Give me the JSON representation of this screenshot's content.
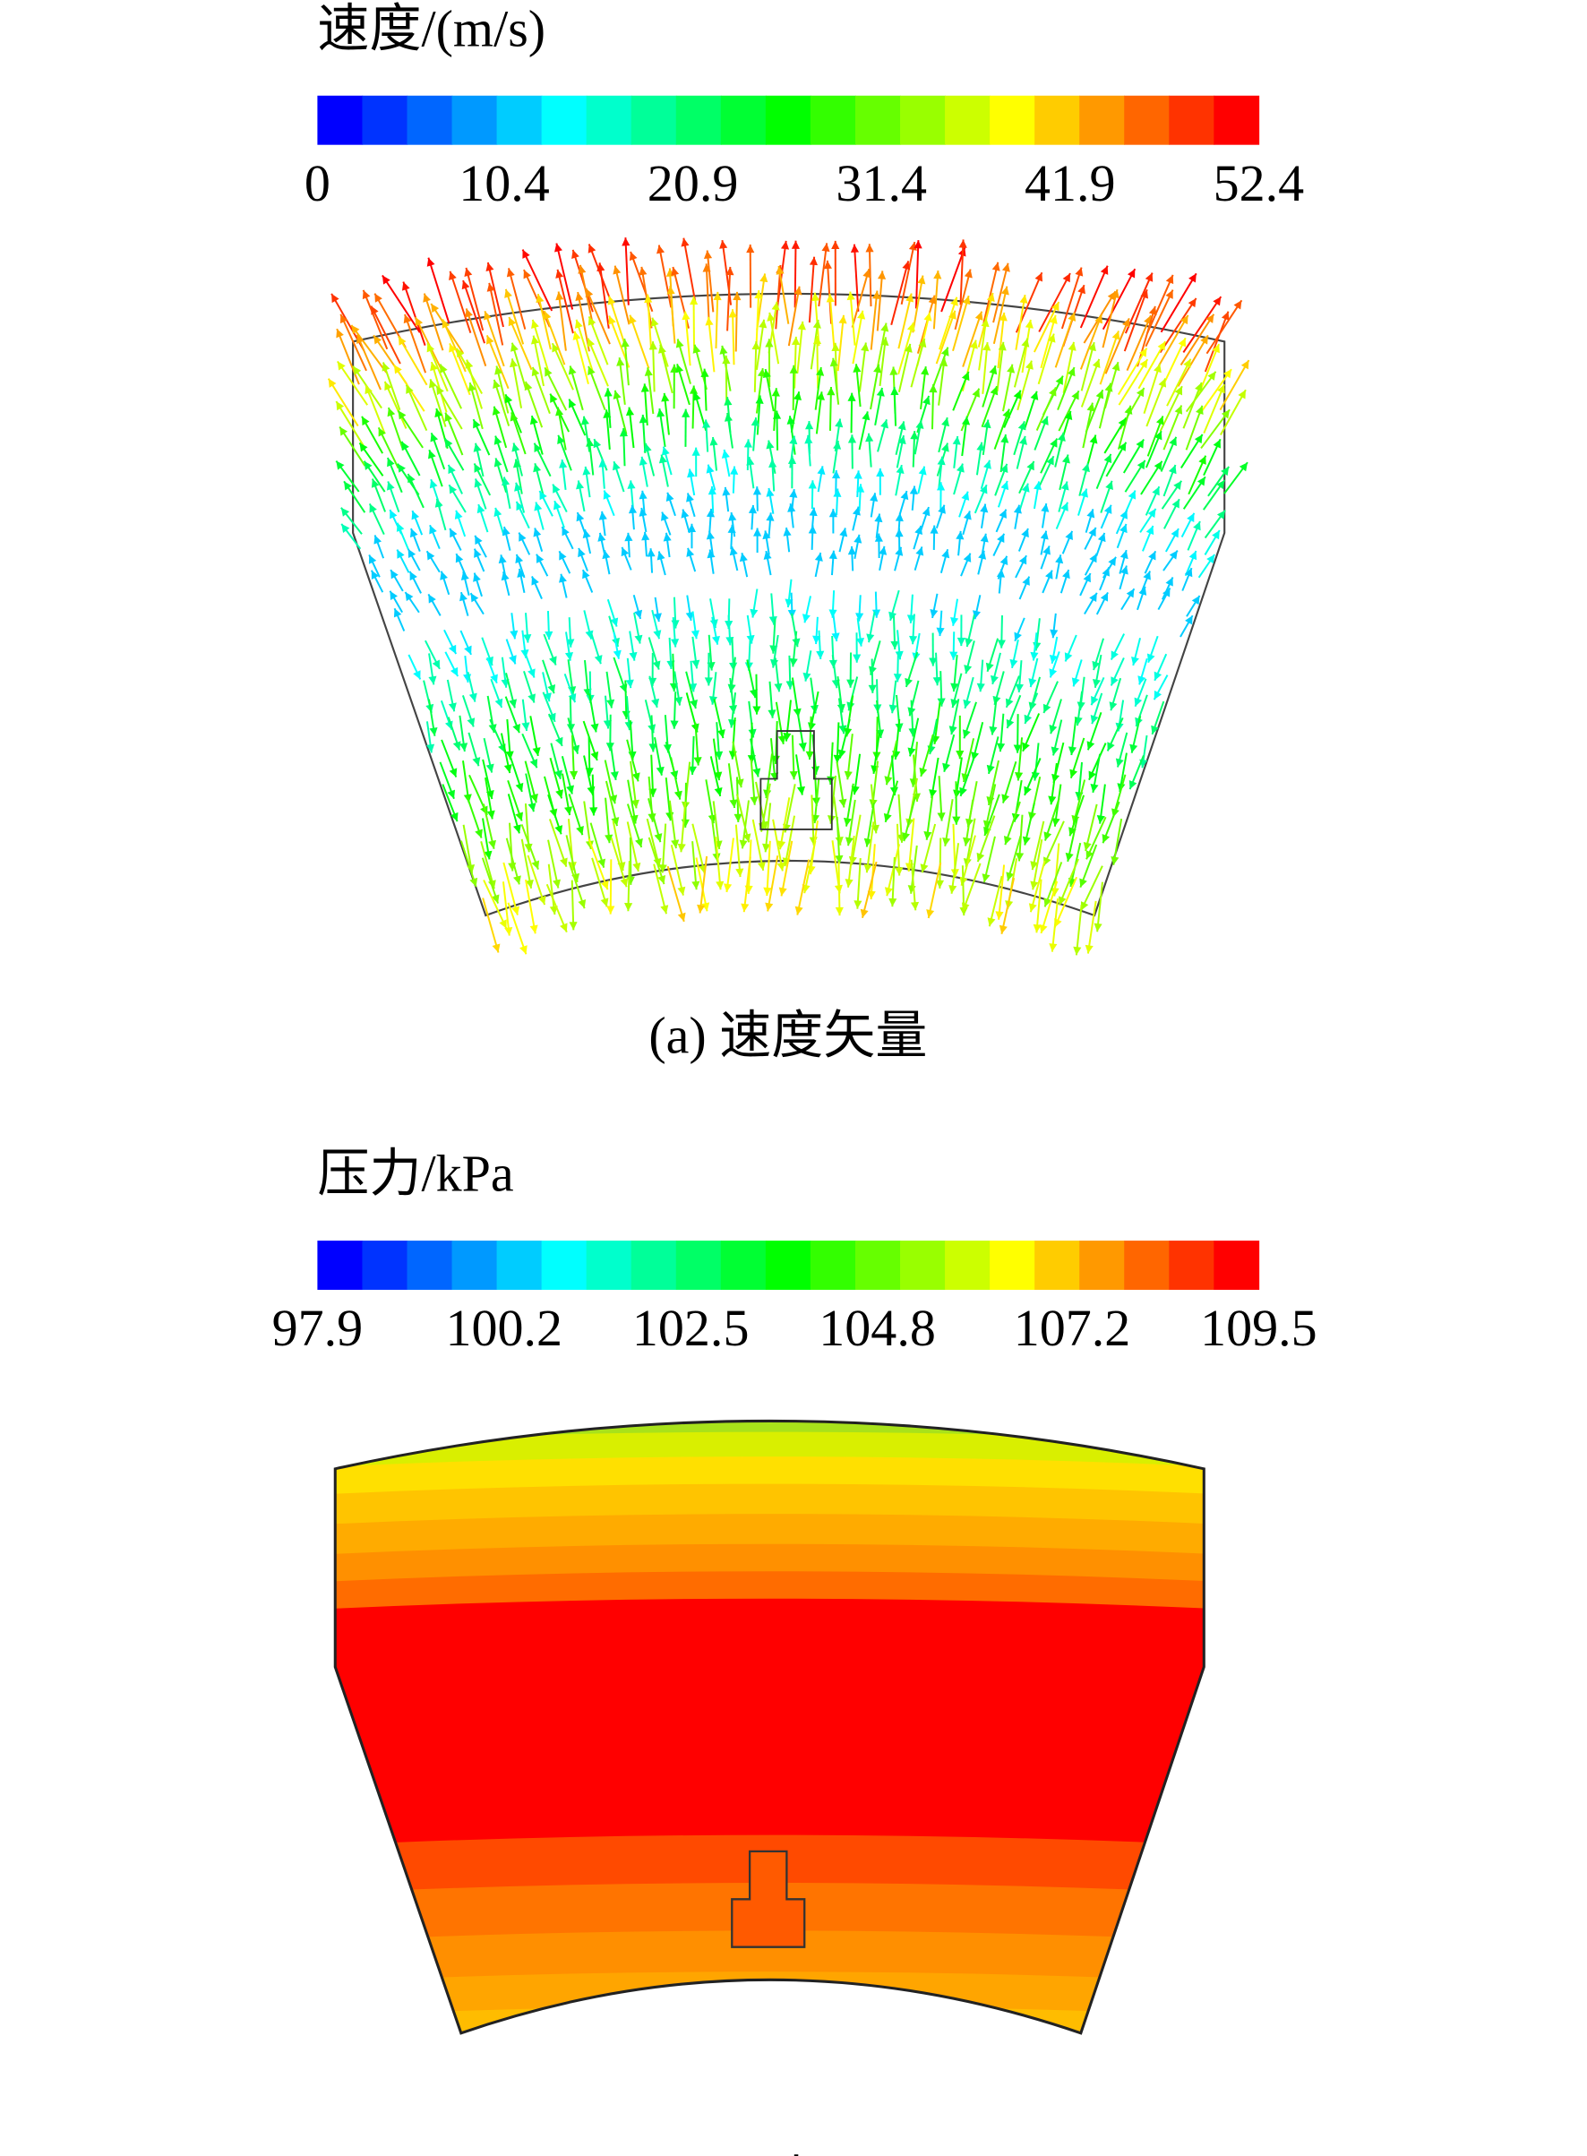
{
  "panels": [
    {
      "colorbar": {
        "title": "速度/(m/s)",
        "range": [
          0,
          52.4
        ],
        "ticks": [
          0,
          10.4,
          20.9,
          31.4,
          41.9,
          52.4
        ]
      },
      "caption": "(a) 速度矢量"
    },
    {
      "colorbar": {
        "title": "压力/kPa",
        "range": [
          97.9,
          109.5
        ],
        "ticks": [
          97.9,
          100.2,
          102.5,
          104.8,
          107.2,
          109.5
        ]
      },
      "caption": "(b) 压力云图"
    }
  ]
}
